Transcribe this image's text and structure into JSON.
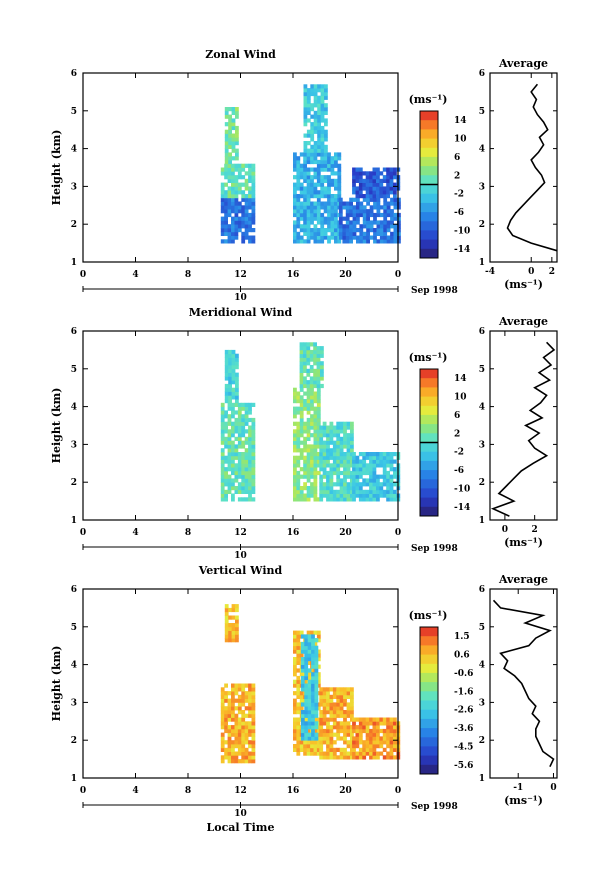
{
  "chart_data": [
    {
      "type": "heatmap",
      "title": "Zonal Wind",
      "ylabel": "Height (km)",
      "xlabel": "",
      "xlim": [
        0,
        24
      ],
      "ylim": [
        1,
        6
      ],
      "x_ticks": [
        "0",
        "4",
        "8",
        "12",
        "16",
        "20",
        "0"
      ],
      "y_ticks": [
        "1",
        "2",
        "3",
        "4",
        "5",
        "6"
      ],
      "date_day": "10",
      "date_month": "Sep 1998",
      "colorbar": {
        "unit": "(ms⁻¹)",
        "range": [
          -16,
          16
        ],
        "tick_labels": [
          "14",
          "10",
          "6",
          "2",
          "-2",
          "-6",
          "-10",
          "-14"
        ],
        "zero_line": true
      },
      "data_regions": [
        {
          "t": [
            10.5,
            13.1
          ],
          "z": [
            1.5,
            2.7
          ],
          "v": -8
        },
        {
          "t": [
            10.5,
            13.1
          ],
          "z": [
            2.7,
            3.6
          ],
          "v": 1
        },
        {
          "t": [
            10.8,
            11.6
          ],
          "z": [
            3.6,
            5.1
          ],
          "v": 2
        },
        {
          "t": [
            16.0,
            19.5
          ],
          "z": [
            1.5,
            3.9
          ],
          "v": -4
        },
        {
          "t": [
            16.8,
            18.5
          ],
          "z": [
            3.9,
            5.7
          ],
          "v": -2
        },
        {
          "t": [
            19.5,
            24.0
          ],
          "z": [
            1.5,
            2.7
          ],
          "v": -8
        },
        {
          "t": [
            20.5,
            24.0
          ],
          "z": [
            2.7,
            3.5
          ],
          "v": -10
        }
      ],
      "avg_profile": {
        "title": "Average",
        "xlabel": "(ms⁻¹)",
        "x_ticks": [
          "-4",
          "0",
          "2"
        ],
        "xlim": [
          -4,
          2.5
        ],
        "z": [
          1.3,
          1.5,
          1.7,
          1.9,
          2.1,
          2.3,
          2.5,
          2.7,
          2.9,
          3.1,
          3.3,
          3.5,
          3.7,
          3.9,
          4.1,
          4.3,
          4.5,
          4.7,
          4.9,
          5.1,
          5.3,
          5.5,
          5.7
        ],
        "u": [
          2.5,
          0.0,
          -1.8,
          -2.3,
          -2.0,
          -1.5,
          -0.8,
          -0.1,
          0.6,
          1.3,
          1.0,
          0.4,
          0.0,
          0.7,
          1.2,
          0.8,
          1.6,
          1.2,
          0.6,
          0.2,
          0.5,
          0.0,
          0.6
        ]
      }
    },
    {
      "type": "heatmap",
      "title": "Meridional Wind",
      "ylabel": "Height (km)",
      "xlabel": "",
      "xlim": [
        0,
        24
      ],
      "ylim": [
        1,
        6
      ],
      "x_ticks": [
        "0",
        "4",
        "8",
        "12",
        "16",
        "20",
        "0"
      ],
      "y_ticks": [
        "1",
        "2",
        "3",
        "4",
        "5",
        "6"
      ],
      "date_day": "10",
      "date_month": "Sep 1998",
      "colorbar": {
        "unit": "(ms⁻¹)",
        "range": [
          -16,
          16
        ],
        "tick_labels": [
          "14",
          "10",
          "6",
          "2",
          "-2",
          "-6",
          "-10",
          "-14"
        ],
        "zero_line": true
      },
      "data_regions": [
        {
          "t": [
            10.5,
            13.1
          ],
          "z": [
            1.5,
            4.1
          ],
          "v": 1
        },
        {
          "t": [
            10.8,
            11.6
          ],
          "z": [
            4.1,
            5.5
          ],
          "v": -1
        },
        {
          "t": [
            16.0,
            18.0
          ],
          "z": [
            1.5,
            4.5
          ],
          "v": 3
        },
        {
          "t": [
            18.0,
            20.5
          ],
          "z": [
            1.5,
            3.6
          ],
          "v": 0
        },
        {
          "t": [
            20.5,
            24.0
          ],
          "z": [
            1.5,
            2.8
          ],
          "v": -2
        },
        {
          "t": [
            16.5,
            18.2
          ],
          "z": [
            4.5,
            5.7
          ],
          "v": 1
        }
      ],
      "avg_profile": {
        "title": "Average",
        "xlabel": "(ms⁻¹)",
        "x_ticks": [
          "0",
          "2"
        ],
        "xlim": [
          -1,
          3.5
        ],
        "z": [
          1.1,
          1.3,
          1.5,
          1.7,
          1.9,
          2.1,
          2.3,
          2.5,
          2.7,
          2.9,
          3.1,
          3.3,
          3.5,
          3.7,
          3.9,
          4.1,
          4.3,
          4.5,
          4.7,
          4.9,
          5.1,
          5.3,
          5.5,
          5.7
        ],
        "u": [
          0.3,
          -0.8,
          0.6,
          -0.4,
          0.1,
          0.6,
          1.1,
          1.9,
          2.8,
          2.0,
          1.6,
          2.3,
          1.4,
          2.5,
          1.7,
          2.4,
          2.8,
          2.0,
          3.0,
          2.3,
          3.1,
          2.6,
          3.3,
          2.8
        ]
      }
    },
    {
      "type": "heatmap",
      "title": "Vertical Wind",
      "ylabel": "Height (km)",
      "xlabel": "Local Time",
      "xlim": [
        0,
        24
      ],
      "ylim": [
        1,
        6
      ],
      "x_ticks": [
        "0",
        "4",
        "8",
        "12",
        "16",
        "20",
        "0"
      ],
      "y_ticks": [
        "1",
        "2",
        "3",
        "4",
        "5",
        "6"
      ],
      "date_day": "10",
      "date_month": "Sep 1998",
      "colorbar": {
        "unit": "(ms⁻¹)",
        "range": [
          -6,
          2
        ],
        "tick_labels": [
          "1.5",
          "0.6",
          "-0.6",
          "-1.6",
          "-2.6",
          "-3.6",
          "-4.5",
          "-5.6"
        ],
        "zero_line": false
      },
      "data_regions": [
        {
          "t": [
            10.5,
            13.1
          ],
          "z": [
            1.4,
            3.5
          ],
          "v": 0.6
        },
        {
          "t": [
            10.8,
            11.8
          ],
          "z": [
            4.6,
            5.6
          ],
          "v": 0.4
        },
        {
          "t": [
            16.0,
            18.0
          ],
          "z": [
            1.6,
            4.9
          ],
          "v": 0.4
        },
        {
          "t": [
            18.0,
            20.5
          ],
          "z": [
            1.5,
            3.4
          ],
          "v": 0.6
        },
        {
          "t": [
            20.5,
            24.0
          ],
          "z": [
            1.5,
            2.6
          ],
          "v": 0.9
        },
        {
          "t": [
            16.6,
            17.8
          ],
          "z": [
            2.0,
            4.8
          ],
          "v": -2.6
        }
      ],
      "avg_profile": {
        "title": "Average",
        "xlabel": "(ms⁻¹)",
        "x_ticks": [
          "-1",
          "0"
        ],
        "xlim": [
          -1.8,
          0.1
        ],
        "z": [
          1.3,
          1.5,
          1.7,
          1.9,
          2.1,
          2.3,
          2.5,
          2.7,
          2.9,
          3.1,
          3.3,
          3.5,
          3.7,
          3.9,
          4.1,
          4.3,
          4.5,
          4.7,
          4.9,
          5.1,
          5.3,
          5.5,
          5.7
        ],
        "u": [
          -0.1,
          0.0,
          -0.3,
          -0.4,
          -0.5,
          -0.5,
          -0.4,
          -0.6,
          -0.5,
          -0.7,
          -0.8,
          -0.9,
          -1.1,
          -1.4,
          -1.3,
          -1.5,
          -0.7,
          -0.5,
          -0.1,
          -0.8,
          -0.3,
          -1.5,
          -1.7
        ]
      }
    }
  ]
}
